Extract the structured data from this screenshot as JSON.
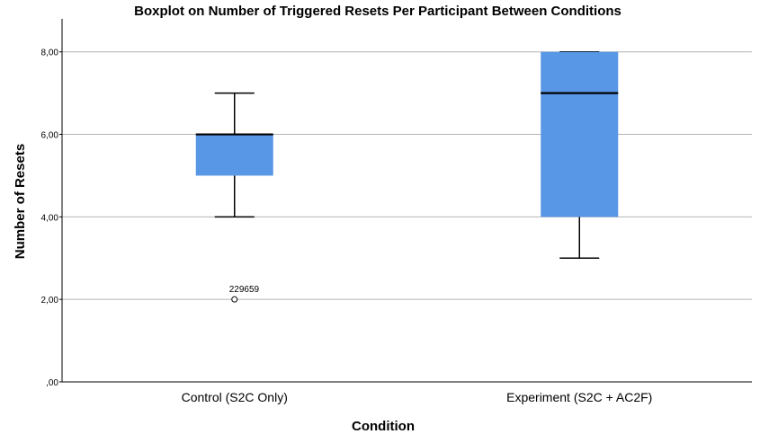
{
  "chart_data": {
    "type": "boxplot",
    "title": "Boxplot on Number of Triggered Resets Per Participant Between Conditions",
    "xlabel": "Condition",
    "ylabel": "Number of Resets",
    "ylim": [
      0,
      8.8
    ],
    "yticks": [
      {
        "value": 0,
        "label": ",00"
      },
      {
        "value": 2,
        "label": "2,00"
      },
      {
        "value": 4,
        "label": "4,00"
      },
      {
        "value": 6,
        "label": "6,00"
      },
      {
        "value": 8,
        "label": "8,00"
      }
    ],
    "grid": true,
    "box_color": "#5896e6",
    "categories": [
      "Control (S2C Only)",
      "Experiment (S2C + AC2F)"
    ],
    "boxes": [
      {
        "category": "Control (S2C Only)",
        "min": 4,
        "q1": 5,
        "median": 6,
        "q3": 6,
        "max": 7,
        "outliers": [
          {
            "value": 2,
            "label": "229659"
          }
        ]
      },
      {
        "category": "Experiment (S2C + AC2F)",
        "min": 3,
        "q1": 4,
        "median": 7,
        "q3": 8,
        "max": 8,
        "outliers": []
      }
    ]
  }
}
